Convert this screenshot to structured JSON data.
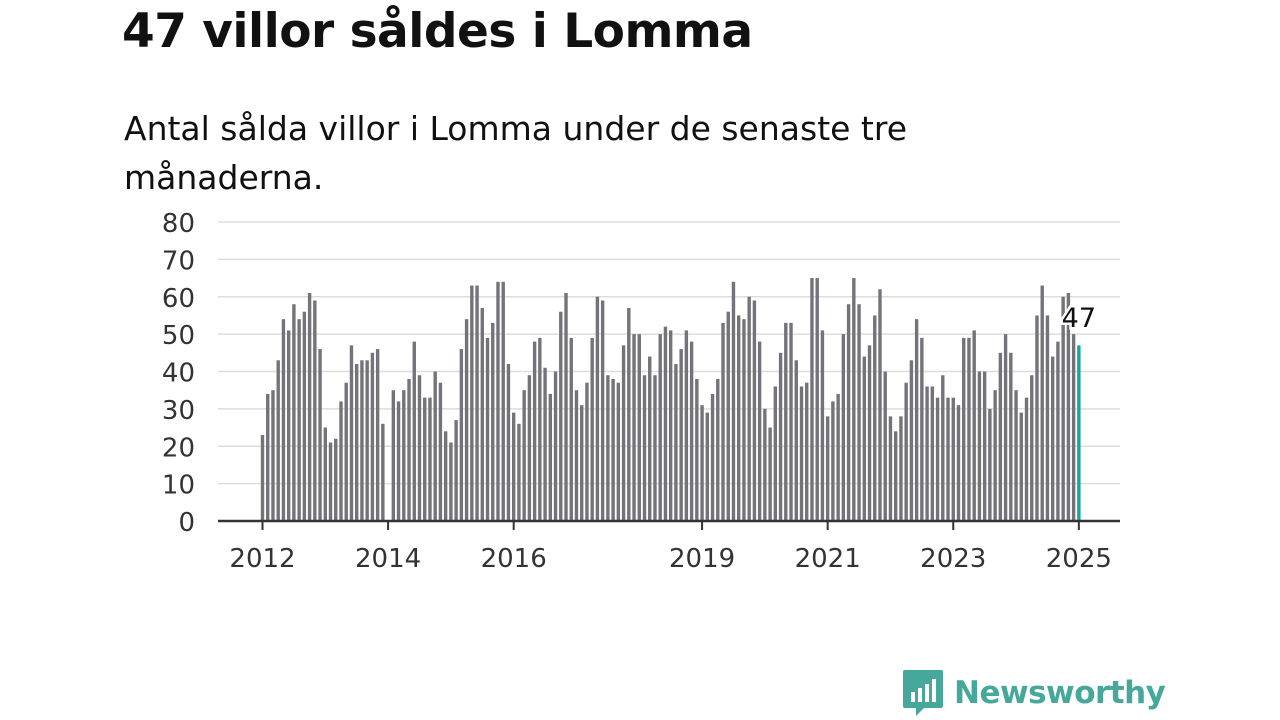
{
  "title": "47 villor såldes i Lomma",
  "subtitle": "Antal sålda villor i Lomma under de senaste tre månaderna.",
  "brand": {
    "name": "Newsworthy",
    "color": "#46a89a",
    "icon": "newsworthy-logo-icon"
  },
  "colors": {
    "bar": "#75737a",
    "highlight": "#12a7a0",
    "grid": "#dddddd",
    "axis": "#333333"
  },
  "chart_data": {
    "type": "bar",
    "start": "2012-01",
    "ylim": [
      0,
      80
    ],
    "yticks": [
      0,
      10,
      20,
      30,
      40,
      50,
      60,
      70,
      80
    ],
    "xticks": [
      {
        "label": "2012",
        "index": 0
      },
      {
        "label": "2014",
        "index": 24
      },
      {
        "label": "2016",
        "index": 48
      },
      {
        "label": "2019",
        "index": 84
      },
      {
        "label": "2021",
        "index": 108
      },
      {
        "label": "2023",
        "index": 132
      },
      {
        "label": "2025",
        "index": 156
      }
    ],
    "highlight_label": "47",
    "grid": true,
    "values": [
      23,
      34,
      35,
      43,
      54,
      51,
      58,
      54,
      56,
      61,
      59,
      46,
      25,
      21,
      22,
      32,
      37,
      47,
      42,
      43,
      43,
      45,
      46,
      26,
      0,
      35,
      32,
      35,
      38,
      48,
      39,
      33,
      33,
      40,
      37,
      24,
      21,
      27,
      46,
      54,
      63,
      63,
      57,
      49,
      53,
      64,
      64,
      42,
      29,
      26,
      35,
      39,
      48,
      49,
      41,
      34,
      40,
      56,
      61,
      49,
      35,
      31,
      37,
      49,
      60,
      59,
      39,
      38,
      37,
      47,
      57,
      50,
      50,
      39,
      44,
      39,
      50,
      52,
      51,
      42,
      46,
      51,
      48,
      38,
      31,
      29,
      34,
      38,
      53,
      56,
      64,
      55,
      54,
      60,
      59,
      48,
      30,
      25,
      36,
      45,
      53,
      53,
      43,
      36,
      37,
      65,
      65,
      51,
      28,
      32,
      34,
      50,
      58,
      65,
      58,
      44,
      47,
      55,
      62,
      40,
      28,
      24,
      28,
      37,
      43,
      54,
      49,
      36,
      36,
      33,
      39,
      33,
      33,
      31,
      49,
      49,
      51,
      40,
      40,
      30,
      35,
      45,
      50,
      45,
      35,
      29,
      33,
      39,
      55,
      63,
      55,
      44,
      48,
      60,
      61,
      50,
      47
    ]
  }
}
